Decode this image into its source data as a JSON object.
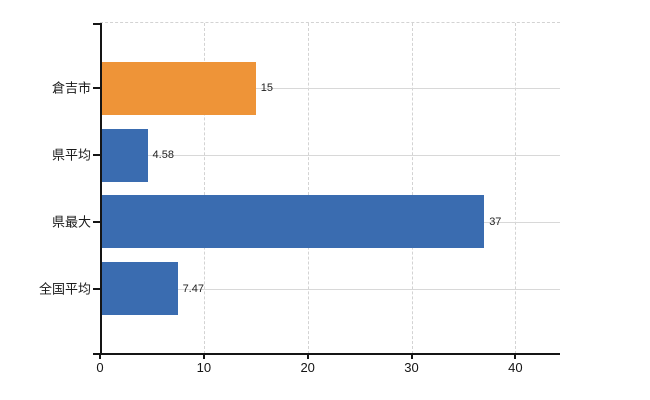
{
  "chart_data": {
    "type": "bar",
    "orientation": "horizontal",
    "title": "",
    "xlabel": "",
    "ylabel": "",
    "categories": [
      "倉吉市",
      "県平均",
      "県最大",
      "全国平均"
    ],
    "values": [
      15,
      4.58,
      37,
      7.47
    ],
    "value_labels": [
      "15",
      "4.58",
      "37",
      "7.47"
    ],
    "bar_colors": [
      "#ee9438",
      "#3a6cb0",
      "#3a6cb0",
      "#3a6cb0"
    ],
    "x_ticks": [
      0,
      10,
      20,
      30,
      40
    ],
    "x_tick_labels": [
      "0",
      "10",
      "20",
      "30",
      "40"
    ],
    "xlim": [
      0,
      44.3
    ],
    "grid": true,
    "legend": false
  },
  "colors": {
    "accent_orange": "#ee9438",
    "accent_blue": "#3a6cb0",
    "axis": "#151515",
    "gridline_dashed": "#d3d3d3",
    "gridline_solid": "#d8d8d8",
    "category_label": "#1a1a1a",
    "value_label": "#222222",
    "background": "#ffffff"
  }
}
